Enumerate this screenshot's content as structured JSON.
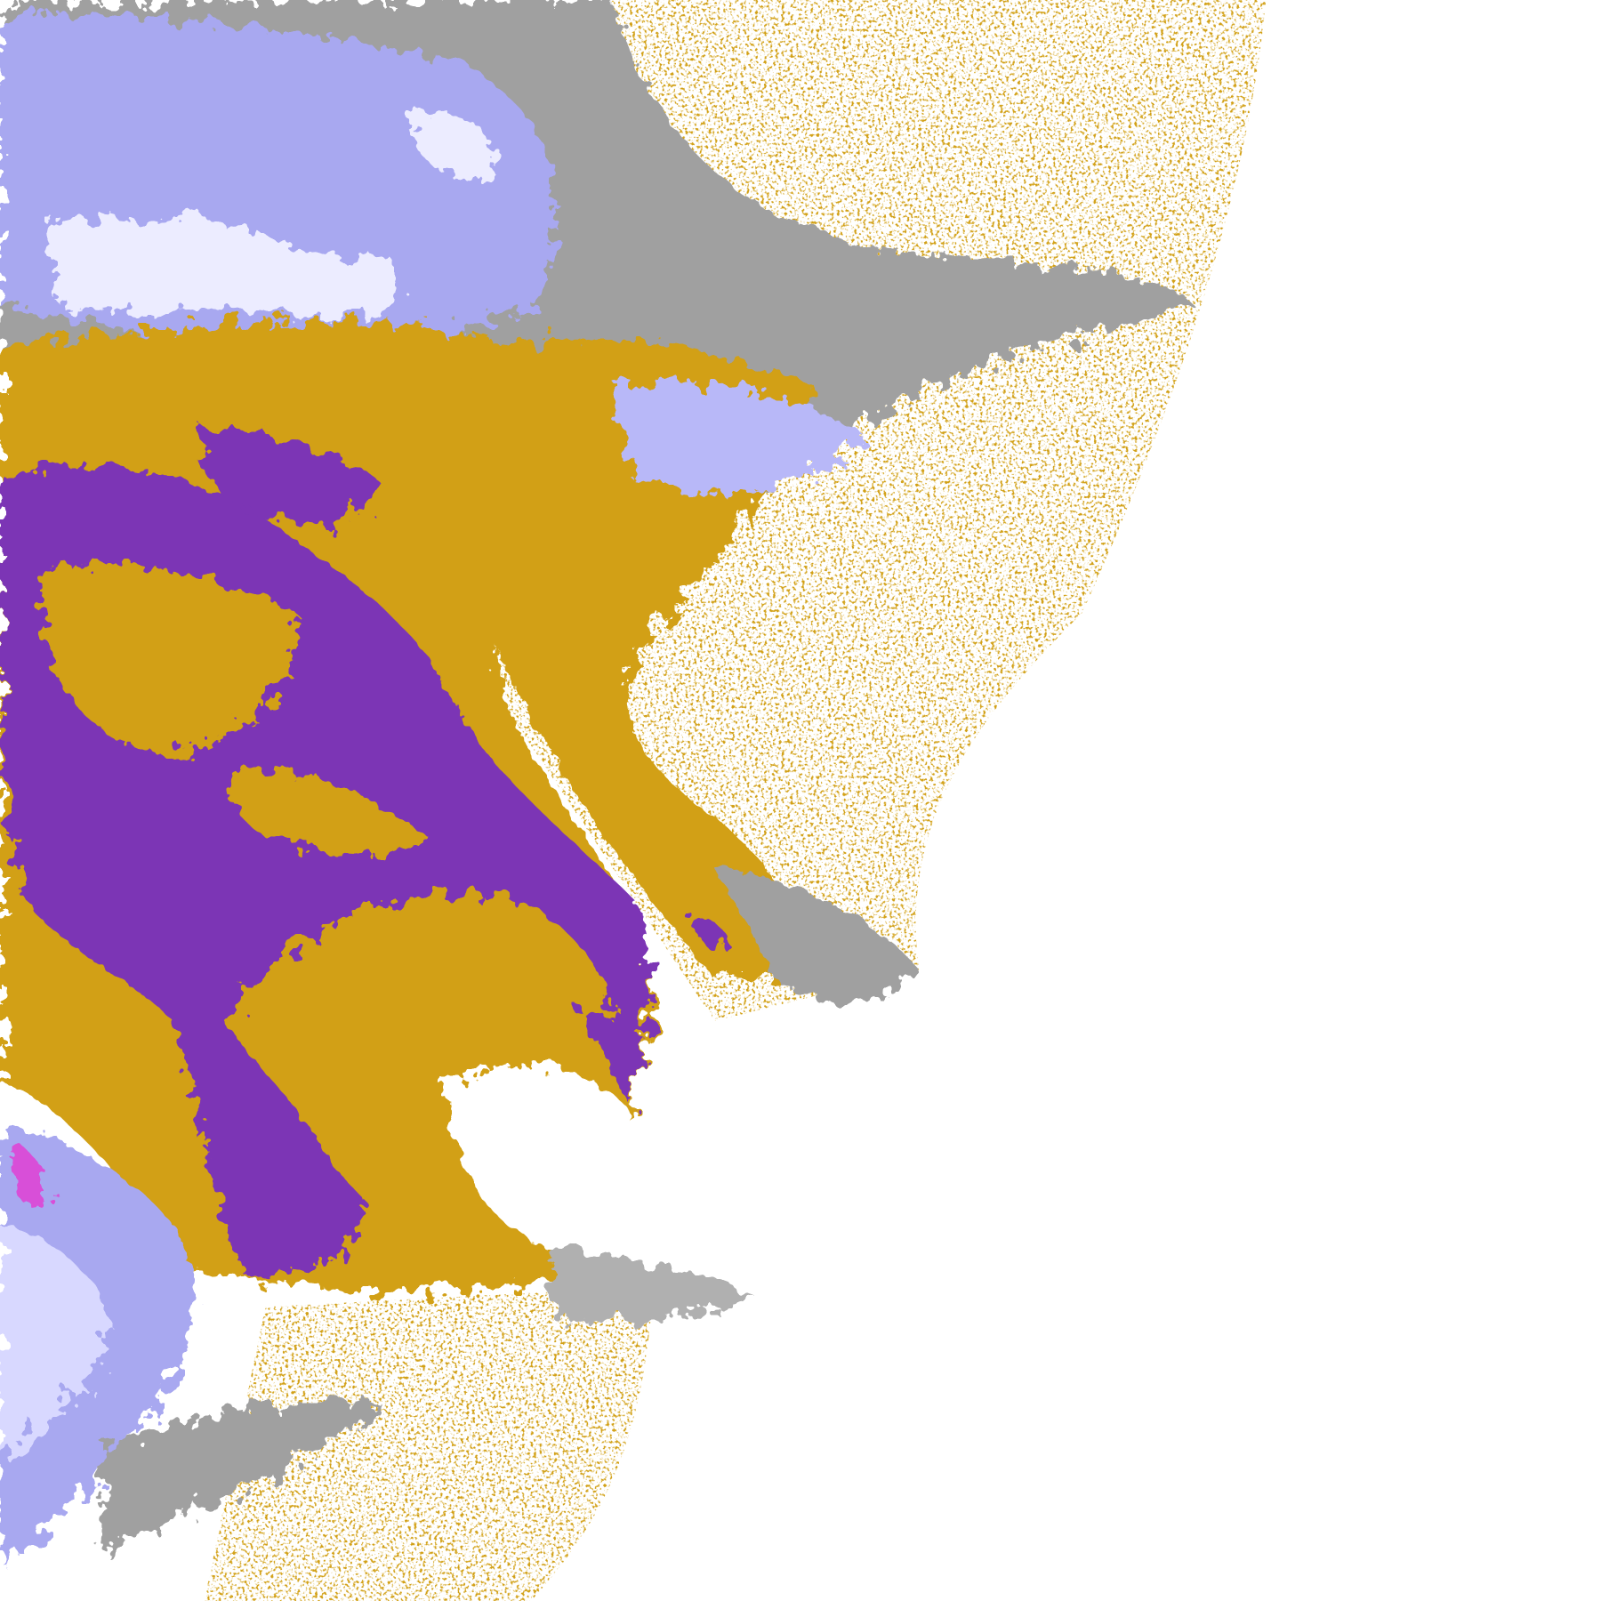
{
  "map": {
    "kind": "satellite cloud-type classification",
    "background": "#ffffff",
    "classes": [
      {
        "id": "purple",
        "color": "#7b35b5"
      },
      {
        "id": "gold",
        "color": "#d2a014"
      },
      {
        "id": "gray",
        "color": "#a0a0a0"
      },
      {
        "id": "lavender",
        "color": "#a8a8f0"
      },
      {
        "id": "pale",
        "color": "#ececff"
      },
      {
        "id": "magenta",
        "color": "#d850d8"
      }
    ]
  }
}
